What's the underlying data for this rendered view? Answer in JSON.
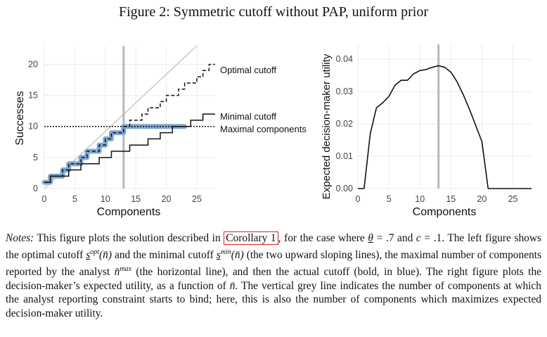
{
  "figure": {
    "title": "Figure 2: Symmetric cutoff without PAP, uniform prior"
  },
  "left_chart": {
    "xlabel": "Components",
    "ylabel": "Successes",
    "x_ticks": [
      "0",
      "5",
      "10",
      "15",
      "20",
      "25"
    ],
    "y_ticks": [
      "0",
      "5",
      "10",
      "15",
      "20"
    ],
    "labels": {
      "optimal": "Optimal cutoff",
      "minimal": "Minimal cutoff",
      "maximal": "Maximal components"
    }
  },
  "right_chart": {
    "xlabel": "Components",
    "ylabel": "Expected decision-maker utility",
    "x_ticks": [
      "0",
      "5",
      "10",
      "15",
      "20",
      "25"
    ],
    "y_ticks": [
      "0.00",
      "0.01",
      "0.02",
      "0.03",
      "0.04"
    ]
  },
  "chart_data": [
    {
      "type": "line",
      "title": "",
      "xlabel": "Components",
      "ylabel": "Successes",
      "xlim": [
        0,
        28
      ],
      "ylim": [
        0,
        23
      ],
      "series": [
        {
          "name": "Optimal cutoff",
          "x": [
            0,
            1,
            2,
            3,
            4,
            5,
            6,
            7,
            8,
            9,
            10,
            11,
            12,
            13,
            14,
            15,
            16,
            17,
            18,
            19,
            20,
            21,
            22,
            23,
            24,
            25,
            26,
            27,
            28
          ],
          "y": [
            1,
            2,
            2,
            3,
            4,
            4,
            5,
            6,
            6,
            7,
            8,
            9,
            9,
            10,
            11,
            11,
            12,
            13,
            13,
            14,
            15,
            15,
            16,
            17,
            17,
            18,
            19,
            20,
            20
          ]
        },
        {
          "name": "Minimal cutoff",
          "x": [
            0,
            1,
            2,
            3,
            4,
            5,
            6,
            7,
            8,
            9,
            10,
            11,
            12,
            13,
            14,
            15,
            16,
            17,
            18,
            19,
            20,
            21,
            22,
            23,
            24,
            25,
            26,
            27,
            28
          ],
          "y": [
            1,
            2,
            2,
            2,
            3,
            3,
            4,
            4,
            4,
            5,
            5,
            6,
            6,
            6,
            7,
            7,
            7,
            8,
            8,
            9,
            9,
            10,
            10,
            10,
            11,
            11,
            12,
            12,
            12
          ]
        },
        {
          "name": "Maximal components",
          "x": [
            0,
            28
          ],
          "y": [
            10,
            10
          ]
        },
        {
          "x": [
            0,
            1,
            2,
            3,
            4,
            5,
            6,
            7,
            8,
            9,
            10,
            11,
            12,
            13,
            14,
            15,
            16,
            17,
            18,
            19,
            20,
            21,
            22,
            23
          ],
          "y": [
            1,
            2,
            2,
            3,
            4,
            4,
            5,
            6,
            6,
            7,
            8,
            9,
            9,
            10,
            10,
            10,
            10,
            10,
            10,
            10,
            10,
            10,
            10,
            10
          ]
        },
        {
          "x": [
            0,
            25
          ],
          "y": [
            0,
            23
          ]
        }
      ],
      "vertical_line_x": 13,
      "grid": true
    },
    {
      "type": "line",
      "title": "",
      "xlabel": "Components",
      "ylabel": "Expected decision-maker utility",
      "xlim": [
        0,
        28
      ],
      "ylim": [
        0,
        0.042
      ],
      "series": [
        {
          "x": [
            0,
            1,
            2,
            3,
            4,
            5,
            6,
            7,
            8,
            9,
            10,
            11,
            12,
            13,
            14,
            15,
            16,
            17,
            18,
            19,
            20,
            21,
            22,
            23,
            24,
            25,
            26,
            27,
            28
          ],
          "y": [
            0,
            0,
            0.017,
            0.025,
            0.0265,
            0.0285,
            0.032,
            0.0335,
            0.0335,
            0.0355,
            0.0365,
            0.0368,
            0.0375,
            0.038,
            0.0375,
            0.036,
            0.033,
            0.029,
            0.0245,
            0.0195,
            0.0145,
            0,
            0,
            0,
            0,
            0,
            0,
            0,
            0
          ]
        }
      ],
      "vertical_line_x": 13,
      "grid": true
    }
  ],
  "notes": {
    "label": "Notes:",
    "l1a": "This figure plots the solution described in",
    "corollary": "Corollary 1",
    "l1b": ", for the case where",
    "theta": "θ",
    "l1c": "= .7 and",
    "c": "c",
    "l1d": "= .1.",
    "l2a": "The left figure shows the optimal cutoff",
    "s": "s",
    "opt": "opt",
    "nbar_paren": "(n̄)",
    "l2b": "and the minimal cutoff",
    "min": "min",
    "l2c": "(the two upward",
    "l3a": "sloping lines), the maximal number of components reported by the analyst",
    "nbar": "n̄",
    "max": "max",
    "l3b": "(the horizontal",
    "l4": "line), and then the actual cutoff (bold, in blue). The right figure plots the decision-maker’s expected",
    "l5a": "utility, as a function of",
    "l5b": ". The vertical grey line indicates the number of components at which",
    "l6": "the analyst reporting constraint starts to bind; here, this is also the number of components which",
    "l7": "maximizes expected decision-maker utility."
  },
  "colors": {
    "grid": "#ebebeb",
    "vline": "#b8b8b8",
    "diagonal": "#c8c8c8",
    "highlight": "#7fa7d4",
    "line": "#111111",
    "link_box": "#e02020"
  }
}
